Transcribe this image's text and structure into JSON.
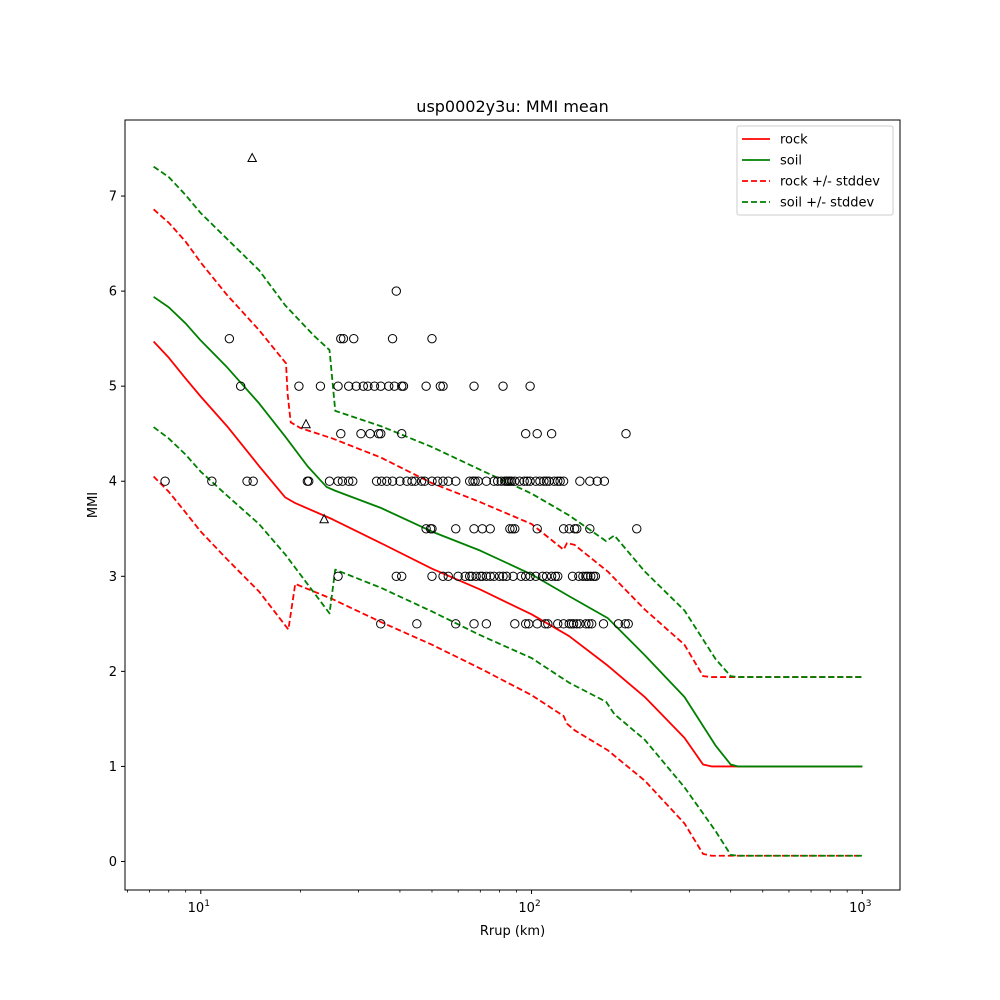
{
  "chart_data": {
    "type": "line",
    "title": "usp0002y3u: MMI mean",
    "xlabel": "Rrup (km)",
    "ylabel": "MMI",
    "xscale": "log",
    "xlim": [
      5.9,
      1300
    ],
    "ylim": [
      -0.3,
      7.8
    ],
    "x_ticks": [
      {
        "value": 10,
        "base": "10",
        "exp": "1"
      },
      {
        "value": 100,
        "base": "10",
        "exp": "2"
      },
      {
        "value": 1000,
        "base": "10",
        "exp": "3"
      }
    ],
    "y_ticks": [
      {
        "value": 0,
        "label": "0"
      },
      {
        "value": 1,
        "label": "1"
      },
      {
        "value": 2,
        "label": "2"
      },
      {
        "value": 3,
        "label": "3"
      },
      {
        "value": 4,
        "label": "4"
      },
      {
        "value": 5,
        "label": "5"
      },
      {
        "value": 6,
        "label": "6"
      },
      {
        "value": 7,
        "label": "7"
      }
    ],
    "legend": {
      "location": "top-right",
      "entries": [
        {
          "label": "rock",
          "color": "#ff0000",
          "style": "solid"
        },
        {
          "label": "soil",
          "color": "#008000",
          "style": "solid"
        },
        {
          "label": "rock +/- stddev",
          "color": "#ff0000",
          "style": "dashed"
        },
        {
          "label": "soil +/- stddev",
          "color": "#008000",
          "style": "dashed"
        }
      ]
    },
    "series": [
      {
        "name": "rock",
        "color": "#ff0000",
        "style": "solid",
        "points": [
          [
            7.2,
            5.47
          ],
          [
            8,
            5.3
          ],
          [
            9,
            5.08
          ],
          [
            10,
            4.89
          ],
          [
            12,
            4.58
          ],
          [
            15,
            4.16
          ],
          [
            18,
            3.83
          ],
          [
            19.3,
            3.77
          ],
          [
            25,
            3.6
          ],
          [
            35,
            3.35
          ],
          [
            50,
            3.08
          ],
          [
            70,
            2.86
          ],
          [
            100,
            2.6
          ],
          [
            130,
            2.37
          ],
          [
            170,
            2.06
          ],
          [
            220,
            1.73
          ],
          [
            290,
            1.3
          ],
          [
            330,
            1.02
          ],
          [
            350,
            1.0
          ],
          [
            1000,
            1.0
          ]
        ]
      },
      {
        "name": "soil",
        "color": "#008000",
        "style": "solid",
        "points": [
          [
            7.2,
            5.94
          ],
          [
            8,
            5.83
          ],
          [
            9,
            5.66
          ],
          [
            10,
            5.48
          ],
          [
            12,
            5.2
          ],
          [
            15,
            4.82
          ],
          [
            18,
            4.47
          ],
          [
            21,
            4.16
          ],
          [
            24,
            3.94
          ],
          [
            25.5,
            3.9
          ],
          [
            35,
            3.72
          ],
          [
            50,
            3.47
          ],
          [
            70,
            3.27
          ],
          [
            100,
            3.02
          ],
          [
            130,
            2.79
          ],
          [
            170,
            2.56
          ],
          [
            220,
            2.17
          ],
          [
            290,
            1.73
          ],
          [
            360,
            1.22
          ],
          [
            400,
            1.02
          ],
          [
            420,
            1.0
          ],
          [
            1000,
            1.0
          ]
        ]
      },
      {
        "name": "rock + stddev",
        "color": "#ff0000",
        "style": "dashed",
        "points": [
          [
            7.2,
            6.86
          ],
          [
            8,
            6.72
          ],
          [
            9,
            6.52
          ],
          [
            10,
            6.3
          ],
          [
            12,
            5.96
          ],
          [
            15,
            5.59
          ],
          [
            18.1,
            5.24
          ],
          [
            18.3,
            4.92
          ],
          [
            18.7,
            4.62
          ],
          [
            20,
            4.56
          ],
          [
            25,
            4.45
          ],
          [
            35,
            4.25
          ],
          [
            50,
            3.98
          ],
          [
            70,
            3.78
          ],
          [
            100,
            3.55
          ],
          [
            125,
            3.28
          ],
          [
            128,
            3.35
          ],
          [
            135,
            3.33
          ],
          [
            170,
            3.05
          ],
          [
            220,
            2.65
          ],
          [
            290,
            2.28
          ],
          [
            330,
            1.95
          ],
          [
            350,
            1.94
          ],
          [
            1000,
            1.94
          ]
        ]
      },
      {
        "name": "rock - stddev",
        "color": "#ff0000",
        "style": "dashed",
        "points": [
          [
            7.2,
            4.05
          ],
          [
            8,
            3.89
          ],
          [
            9,
            3.67
          ],
          [
            10,
            3.47
          ],
          [
            12,
            3.18
          ],
          [
            15,
            2.84
          ],
          [
            18.4,
            2.44
          ],
          [
            19.3,
            2.92
          ],
          [
            25,
            2.76
          ],
          [
            35,
            2.52
          ],
          [
            50,
            2.28
          ],
          [
            70,
            2.03
          ],
          [
            100,
            1.75
          ],
          [
            125,
            1.53
          ],
          [
            128,
            1.45
          ],
          [
            135,
            1.38
          ],
          [
            170,
            1.17
          ],
          [
            220,
            0.85
          ],
          [
            290,
            0.4
          ],
          [
            330,
            0.08
          ],
          [
            350,
            0.06
          ],
          [
            1000,
            0.06
          ]
        ]
      },
      {
        "name": "soil + stddev",
        "color": "#008000",
        "style": "dashed",
        "points": [
          [
            7.2,
            7.31
          ],
          [
            8,
            7.2
          ],
          [
            9,
            7.01
          ],
          [
            10,
            6.82
          ],
          [
            12,
            6.55
          ],
          [
            15,
            6.22
          ],
          [
            18,
            5.85
          ],
          [
            22,
            5.53
          ],
          [
            24.5,
            5.38
          ],
          [
            25.5,
            4.74
          ],
          [
            35,
            4.58
          ],
          [
            50,
            4.36
          ],
          [
            70,
            4.12
          ],
          [
            100,
            3.87
          ],
          [
            130,
            3.64
          ],
          [
            168,
            3.37
          ],
          [
            178,
            3.43
          ],
          [
            220,
            3.05
          ],
          [
            290,
            2.64
          ],
          [
            360,
            2.13
          ],
          [
            400,
            1.95
          ],
          [
            420,
            1.94
          ],
          [
            1000,
            1.94
          ]
        ]
      },
      {
        "name": "soil - stddev",
        "color": "#008000",
        "style": "dashed",
        "points": [
          [
            7.2,
            4.57
          ],
          [
            8,
            4.45
          ],
          [
            9,
            4.28
          ],
          [
            10,
            4.1
          ],
          [
            12,
            3.85
          ],
          [
            15,
            3.55
          ],
          [
            18,
            3.23
          ],
          [
            21,
            2.92
          ],
          [
            24.5,
            2.61
          ],
          [
            25.5,
            3.07
          ],
          [
            35,
            2.88
          ],
          [
            50,
            2.63
          ],
          [
            70,
            2.38
          ],
          [
            100,
            2.14
          ],
          [
            130,
            1.88
          ],
          [
            168,
            1.68
          ],
          [
            178,
            1.55
          ],
          [
            220,
            1.28
          ],
          [
            290,
            0.78
          ],
          [
            360,
            0.32
          ],
          [
            400,
            0.07
          ],
          [
            420,
            0.06
          ],
          [
            1000,
            0.06
          ]
        ]
      }
    ],
    "observations_circle": [
      [
        7.8,
        4
      ],
      [
        10.8,
        4
      ],
      [
        13.8,
        4
      ],
      [
        14.4,
        4
      ],
      [
        21,
        4
      ],
      [
        21.2,
        4
      ],
      [
        24.5,
        4
      ],
      [
        26,
        4
      ],
      [
        26.8,
        4
      ],
      [
        28,
        4
      ],
      [
        28.8,
        4
      ],
      [
        34,
        4
      ],
      [
        35.2,
        4
      ],
      [
        36.5,
        4
      ],
      [
        38,
        4
      ],
      [
        40,
        4
      ],
      [
        42,
        4
      ],
      [
        43.5,
        4
      ],
      [
        44.5,
        4
      ],
      [
        46.5,
        4
      ],
      [
        47.5,
        4
      ],
      [
        50,
        4
      ],
      [
        52,
        4
      ],
      [
        54,
        4
      ],
      [
        56,
        4
      ],
      [
        59,
        4
      ],
      [
        65,
        4
      ],
      [
        66.5,
        4
      ],
      [
        67.5,
        4
      ],
      [
        69,
        4
      ],
      [
        73,
        4
      ],
      [
        77,
        4
      ],
      [
        79,
        4
      ],
      [
        81,
        4
      ],
      [
        83,
        4
      ],
      [
        84,
        4
      ],
      [
        85,
        4
      ],
      [
        86,
        4
      ],
      [
        87,
        4
      ],
      [
        89,
        4
      ],
      [
        92,
        4
      ],
      [
        95,
        4
      ],
      [
        97,
        4
      ],
      [
        99,
        4
      ],
      [
        103,
        4
      ],
      [
        106,
        4
      ],
      [
        109,
        4
      ],
      [
        111,
        4
      ],
      [
        113,
        4
      ],
      [
        117,
        4
      ],
      [
        120,
        4
      ],
      [
        122,
        4
      ],
      [
        125,
        4
      ],
      [
        140,
        4
      ],
      [
        150,
        4
      ],
      [
        158,
        4
      ],
      [
        166,
        4
      ],
      [
        12.2,
        5.5
      ],
      [
        26.5,
        5.5
      ],
      [
        27,
        5.5
      ],
      [
        29,
        5.5
      ],
      [
        38,
        5.5
      ],
      [
        50,
        5.5
      ],
      [
        39,
        6
      ],
      [
        13.2,
        5
      ],
      [
        19.8,
        5
      ],
      [
        23,
        5
      ],
      [
        26,
        5
      ],
      [
        28,
        5
      ],
      [
        29.5,
        5
      ],
      [
        31,
        5
      ],
      [
        32,
        5
      ],
      [
        33.5,
        5
      ],
      [
        35,
        5
      ],
      [
        37,
        5
      ],
      [
        38.5,
        5
      ],
      [
        40.5,
        5
      ],
      [
        41,
        5
      ],
      [
        48,
        5
      ],
      [
        53,
        5
      ],
      [
        54,
        5
      ],
      [
        67,
        5
      ],
      [
        82,
        5
      ],
      [
        99,
        5
      ],
      [
        26.5,
        4.5
      ],
      [
        30.5,
        4.5
      ],
      [
        32.5,
        4.5
      ],
      [
        34.5,
        4.5
      ],
      [
        35,
        4.5
      ],
      [
        40.5,
        4.5
      ],
      [
        96,
        4.5
      ],
      [
        104,
        4.5
      ],
      [
        115,
        4.5
      ],
      [
        193,
        4.5
      ],
      [
        48,
        3.5
      ],
      [
        49.5,
        3.5
      ],
      [
        50,
        3.5
      ],
      [
        59,
        3.5
      ],
      [
        67,
        3.5
      ],
      [
        71,
        3.5
      ],
      [
        75,
        3.5
      ],
      [
        86,
        3.5
      ],
      [
        87.5,
        3.5
      ],
      [
        89,
        3.5
      ],
      [
        104,
        3.5
      ],
      [
        125,
        3.5
      ],
      [
        130,
        3.5
      ],
      [
        135,
        3.5
      ],
      [
        137,
        3.5
      ],
      [
        150,
        3.5
      ],
      [
        208,
        3.5
      ],
      [
        26,
        3
      ],
      [
        39,
        3
      ],
      [
        40.5,
        3
      ],
      [
        50,
        3
      ],
      [
        54,
        3
      ],
      [
        56,
        3
      ],
      [
        60,
        3
      ],
      [
        63,
        3
      ],
      [
        65,
        3
      ],
      [
        66,
        3
      ],
      [
        68,
        3
      ],
      [
        70,
        3
      ],
      [
        71,
        3
      ],
      [
        73,
        3
      ],
      [
        75,
        3
      ],
      [
        77,
        3
      ],
      [
        80,
        3
      ],
      [
        82,
        3
      ],
      [
        84,
        3
      ],
      [
        88,
        3
      ],
      [
        93,
        3
      ],
      [
        96,
        3
      ],
      [
        99,
        3
      ],
      [
        103,
        3
      ],
      [
        108,
        3
      ],
      [
        111,
        3
      ],
      [
        115,
        3
      ],
      [
        118,
        3
      ],
      [
        120,
        3
      ],
      [
        133,
        3
      ],
      [
        139,
        3
      ],
      [
        143,
        3
      ],
      [
        146,
        3
      ],
      [
        148,
        3
      ],
      [
        151,
        3
      ],
      [
        154,
        3
      ],
      [
        156,
        3
      ],
      [
        35,
        2.5
      ],
      [
        45,
        2.5
      ],
      [
        59,
        2.5
      ],
      [
        67,
        2.5
      ],
      [
        73,
        2.5
      ],
      [
        89,
        2.5
      ],
      [
        96,
        2.5
      ],
      [
        98,
        2.5
      ],
      [
        104,
        2.5
      ],
      [
        110,
        2.5
      ],
      [
        112,
        2.5
      ],
      [
        120,
        2.5
      ],
      [
        125,
        2.5
      ],
      [
        130,
        2.5
      ],
      [
        132,
        2.5
      ],
      [
        134,
        2.5
      ],
      [
        137,
        2.5
      ],
      [
        140,
        2.5
      ],
      [
        146,
        2.5
      ],
      [
        149,
        2.5
      ],
      [
        152,
        2.5
      ],
      [
        165,
        2.5
      ],
      [
        183,
        2.5
      ],
      [
        192,
        2.5
      ],
      [
        196,
        2.5
      ]
    ],
    "observations_triangle": [
      [
        14.3,
        7.4
      ],
      [
        20.8,
        4.6
      ],
      [
        23.6,
        3.6
      ]
    ]
  }
}
